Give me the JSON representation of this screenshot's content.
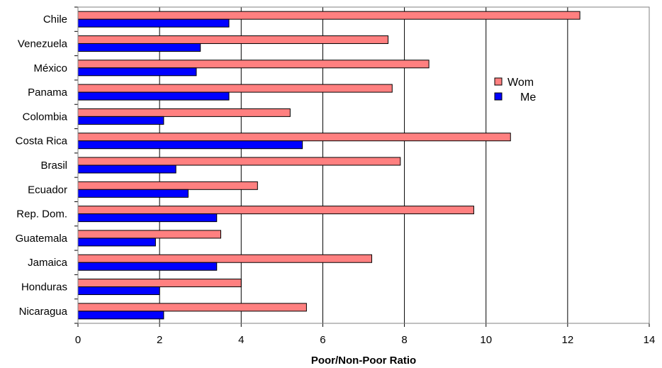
{
  "chart_data": {
    "type": "bar",
    "orientation": "horizontal",
    "categories": [
      "Chile",
      "Venezuela",
      "México",
      "Panama",
      "Colombia",
      "Costa Rica",
      "Brasil",
      "Ecuador",
      "Rep. Dom.",
      "Guatemala",
      "Jamaica",
      "Honduras",
      "Nicaragua"
    ],
    "series": [
      {
        "name": "Wom",
        "color": "#ff8080",
        "values": [
          12.3,
          7.6,
          8.6,
          7.7,
          5.2,
          10.6,
          7.9,
          4.4,
          9.7,
          3.5,
          7.2,
          4.0,
          5.6
        ]
      },
      {
        "name": "Me",
        "color": "#0000ff",
        "values": [
          3.7,
          3.0,
          2.9,
          3.7,
          2.1,
          5.5,
          2.4,
          2.7,
          3.4,
          1.9,
          3.4,
          2.0,
          2.1
        ]
      }
    ],
    "xlabel": "Poor/Non-Poor Ratio",
    "ylabel": "",
    "xlim": [
      0,
      14
    ],
    "xticks": [
      0,
      2,
      4,
      6,
      8,
      10,
      12,
      14
    ],
    "grid": "vertical",
    "legend_position": "right"
  }
}
